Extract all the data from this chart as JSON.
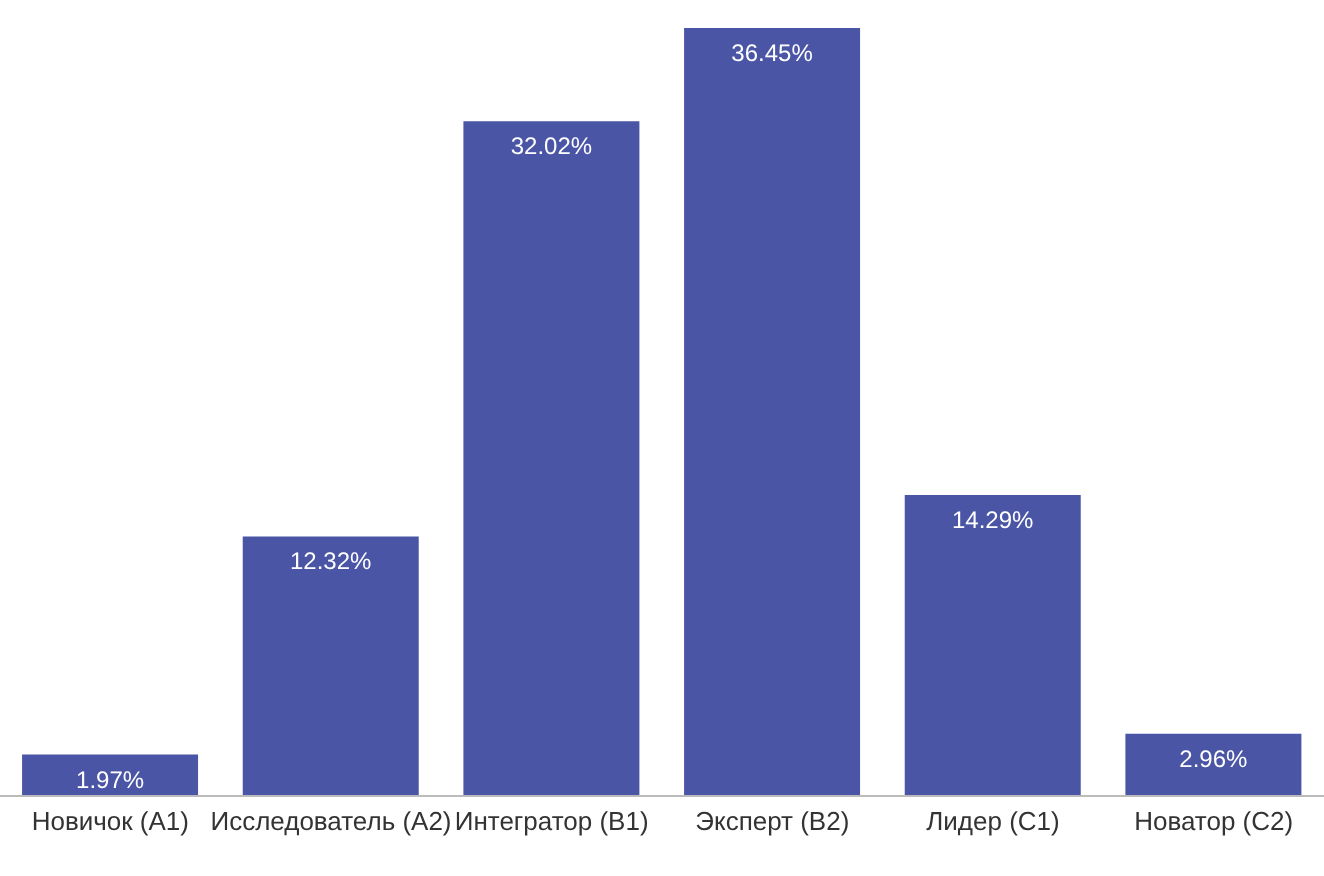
{
  "chart_data": {
    "type": "bar",
    "categories": [
      "Новичок (A1)",
      "Исследователь (A2)",
      "Интегратор (B1)",
      "Эксперт (B2)",
      "Лидер (C1)",
      "Новатор (C2)"
    ],
    "values": [
      1.97,
      12.32,
      32.02,
      36.45,
      14.29,
      2.96
    ],
    "value_labels": [
      "1.97%",
      "12.32%",
      "32.02%",
      "36.45%",
      "14.29%",
      "2.96%"
    ],
    "color": "#4a55a5",
    "grid": false
  }
}
